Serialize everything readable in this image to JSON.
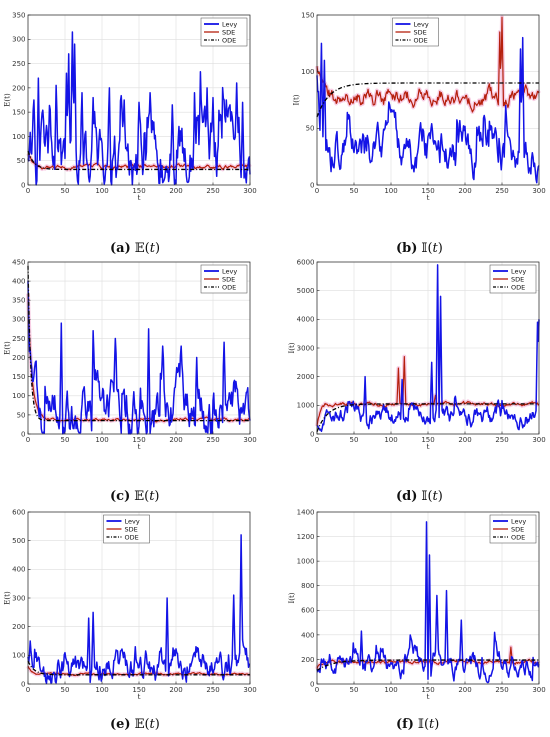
{
  "colors": {
    "levy": "#1414e6",
    "sde": "#b5200d",
    "sde_band": "#f2a6cf",
    "ode": "#000000",
    "grid": "#dedede"
  },
  "chart_data": [
    {
      "id": "a",
      "type": "line",
      "caption_letter": "(a)",
      "caption_expr": "𝔼(𝑡)",
      "ylabel": "E(t)",
      "xlabel": "t",
      "xlim": [
        0,
        300
      ],
      "ylim": [
        0,
        350
      ],
      "xticks": [
        0,
        50,
        100,
        150,
        200,
        250,
        300
      ],
      "yticks": [
        0,
        50,
        100,
        150,
        200,
        250,
        300,
        350
      ],
      "grid": true,
      "legend_position": "top-right",
      "series": [
        {
          "name": "Levy",
          "key": "levy",
          "base": 40,
          "amp": 55,
          "spikes": [
            [
              8,
              175
            ],
            [
              14,
              220
            ],
            [
              38,
              205
            ],
            [
              52,
              230
            ],
            [
              55,
              270
            ],
            [
              60,
              315
            ],
            [
              63,
              290
            ],
            [
              73,
              190
            ],
            [
              88,
              180
            ],
            [
              110,
              200
            ],
            [
              130,
              175
            ],
            [
              150,
              170
            ],
            [
              165,
              190
            ],
            [
              195,
              165
            ],
            [
              225,
              190
            ],
            [
              242,
              200
            ],
            [
              250,
              180
            ],
            [
              268,
              175
            ],
            [
              282,
              210
            ],
            [
              290,
              170
            ]
          ]
        },
        {
          "name": "SDE",
          "key": "sde",
          "base": 38,
          "amp": 9,
          "start": 70
        },
        {
          "name": "ODE",
          "key": "ode",
          "ode": {
            "start": 70,
            "end": 32,
            "rate": 0.12
          }
        }
      ]
    },
    {
      "id": "b",
      "type": "line",
      "caption_letter": "(b)",
      "caption_expr": "𝕀(𝑡)",
      "ylabel": "I(t)",
      "xlabel": "t",
      "xlim": [
        0,
        300
      ],
      "ylim": [
        0,
        150
      ],
      "xticks": [
        0,
        50,
        100,
        150,
        200,
        250,
        300
      ],
      "yticks": [
        0,
        50,
        100,
        150
      ],
      "grid": true,
      "legend_position": "top-center",
      "series": [
        {
          "name": "Levy",
          "key": "levy",
          "base": 25,
          "amp": 14,
          "start": 125,
          "spikes": [
            [
              6,
              125
            ],
            [
              10,
              110
            ],
            [
              62,
              45
            ],
            [
              125,
              40
            ],
            [
              255,
              70
            ],
            [
              275,
              120
            ],
            [
              278,
              130
            ]
          ]
        },
        {
          "name": "SDE",
          "key": "sde",
          "base": 78,
          "amp": 16,
          "start": 105,
          "spikes": [
            [
              250,
              148
            ],
            [
              247,
              135
            ]
          ]
        },
        {
          "name": "ODE",
          "key": "ode",
          "ode": {
            "start": 60,
            "end": 90,
            "rate": 0.06
          }
        }
      ]
    },
    {
      "id": "c",
      "type": "line",
      "caption_letter": "(c)",
      "caption_expr": "𝔼(𝑡)",
      "ylabel": "E(t)",
      "xlabel": "t",
      "xlim": [
        0,
        300
      ],
      "ylim": [
        0,
        450
      ],
      "xticks": [
        0,
        50,
        100,
        150,
        200,
        250,
        300
      ],
      "yticks": [
        0,
        50,
        100,
        150,
        200,
        250,
        300,
        350,
        400,
        450
      ],
      "grid": true,
      "legend_position": "top-right",
      "series": [
        {
          "name": "Levy",
          "key": "levy",
          "base": 45,
          "amp": 55,
          "start": 440,
          "spikes": [
            [
              45,
              290
            ],
            [
              88,
              270
            ],
            [
              118,
              250
            ],
            [
              163,
              275
            ],
            [
              182,
              230
            ],
            [
              207,
              230
            ],
            [
              228,
              200
            ],
            [
              265,
              240
            ]
          ]
        },
        {
          "name": "SDE",
          "key": "sde",
          "base": 38,
          "amp": 8,
          "start": 440
        },
        {
          "name": "ODE",
          "key": "ode",
          "ode": {
            "start": 440,
            "end": 35,
            "rate": 0.28
          }
        }
      ]
    },
    {
      "id": "d",
      "type": "line",
      "caption_letter": "(d)",
      "caption_expr": "𝕀(𝑡)",
      "ylabel": "I(t)",
      "xlabel": "t",
      "xlim": [
        0,
        300
      ],
      "ylim": [
        0,
        6000
      ],
      "xticks": [
        0,
        50,
        100,
        150,
        200,
        250,
        300
      ],
      "yticks": [
        0,
        1000,
        2000,
        3000,
        4000,
        5000,
        6000
      ],
      "grid": true,
      "legend_position": "top-right",
      "series": [
        {
          "name": "Levy",
          "key": "levy",
          "base": 550,
          "amp": 260,
          "start": 80,
          "spikes": [
            [
              65,
              2000
            ],
            [
              115,
              1900
            ],
            [
              155,
              2500
            ],
            [
              163,
              5900
            ],
            [
              167,
              4800
            ],
            [
              298,
              3900
            ],
            [
              300,
              4000
            ]
          ]
        },
        {
          "name": "SDE",
          "key": "sde",
          "base": 1050,
          "amp": 150,
          "start": 80,
          "spikes": [
            [
              110,
              2300
            ],
            [
              118,
              2700
            ],
            [
              160,
              1350
            ]
          ]
        },
        {
          "name": "ODE",
          "key": "ode",
          "ode": {
            "start": 80,
            "end": 1050,
            "rate": 0.07
          }
        }
      ]
    },
    {
      "id": "e",
      "type": "line",
      "caption_letter": "(e)",
      "caption_expr": "𝔼(𝑡)",
      "ylabel": "E(t)",
      "xlabel": "t",
      "xlim": [
        0,
        300
      ],
      "ylim": [
        0,
        600
      ],
      "xticks": [
        0,
        50,
        100,
        150,
        200,
        250,
        300
      ],
      "yticks": [
        0,
        100,
        200,
        300,
        400,
        500,
        600
      ],
      "grid": true,
      "legend_position": "top-center",
      "series": [
        {
          "name": "Levy",
          "key": "levy",
          "base": 45,
          "amp": 40,
          "start": 130,
          "spikes": [
            [
              3,
              150
            ],
            [
              82,
              230
            ],
            [
              88,
              250
            ],
            [
              145,
              130
            ],
            [
              188,
              300
            ],
            [
              225,
              110
            ],
            [
              278,
              310
            ],
            [
              288,
              520
            ]
          ]
        },
        {
          "name": "SDE",
          "key": "sde",
          "base": 35,
          "amp": 7,
          "start": 70
        },
        {
          "name": "ODE",
          "key": "ode",
          "ode": {
            "start": 80,
            "end": 32,
            "rate": 0.12
          }
        }
      ]
    },
    {
      "id": "f",
      "type": "line",
      "caption_letter": "(f)",
      "caption_expr": "𝕀(𝑡)",
      "ylabel": "I(t)",
      "xlabel": "t",
      "xlim": [
        0,
        300
      ],
      "ylim": [
        0,
        1400
      ],
      "xticks": [
        0,
        50,
        100,
        150,
        200,
        250,
        300
      ],
      "yticks": [
        0,
        200,
        400,
        600,
        800,
        1000,
        1200,
        1400
      ],
      "grid": true,
      "legend_position": "top-right",
      "series": [
        {
          "name": "Levy",
          "key": "levy",
          "base": 140,
          "amp": 70,
          "start": 110,
          "spikes": [
            [
              60,
              430
            ],
            [
              148,
              1320
            ],
            [
              152,
              1050
            ],
            [
              162,
              720
            ],
            [
              175,
              760
            ],
            [
              195,
              520
            ],
            [
              240,
              420
            ],
            [
              300,
              160
            ]
          ]
        },
        {
          "name": "SDE",
          "key": "sde",
          "base": 180,
          "amp": 30,
          "start": 110,
          "spikes": [
            [
              262,
              300
            ]
          ]
        },
        {
          "name": "ODE",
          "key": "ode",
          "ode": {
            "start": 110,
            "end": 195,
            "rate": 0.05
          }
        }
      ]
    }
  ]
}
